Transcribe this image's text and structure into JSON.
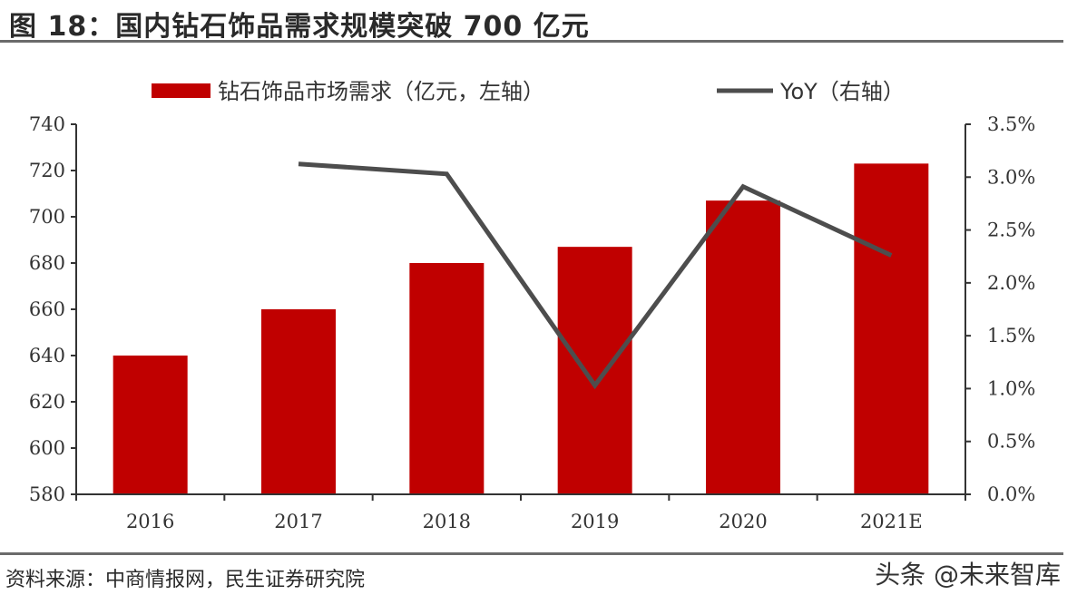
{
  "header": {
    "title": "图 18：国内钻石饰品需求规模突破 700 亿元"
  },
  "footer": {
    "source": "资料来源：中商情报网，民生证券研究院",
    "watermark": "头条 @未来智库"
  },
  "colors": {
    "bar": "#C00000",
    "line": "#4D4D4D",
    "axis": "#333333",
    "rule": "#6B6B6B"
  },
  "chart_data": {
    "type": "bar",
    "categories": [
      "2016",
      "2017",
      "2018",
      "2019",
      "2020",
      "2021E"
    ],
    "series": [
      {
        "name": "钻石饰品市场需求（亿元，左轴）",
        "kind": "bar",
        "axis": "left",
        "values": [
          640,
          660,
          680,
          687,
          707,
          723
        ]
      },
      {
        "name": "YoY（右轴）",
        "kind": "line",
        "axis": "right",
        "values": [
          null,
          3.125,
          3.03,
          1.03,
          2.91,
          2.26
        ]
      }
    ],
    "y_left": {
      "lim": [
        580,
        740
      ],
      "ticks": [
        "580",
        "600",
        "620",
        "640",
        "660",
        "680",
        "700",
        "720",
        "740"
      ],
      "tick_values": [
        580,
        600,
        620,
        640,
        660,
        680,
        700,
        720,
        740
      ]
    },
    "y_right": {
      "lim": [
        0,
        3.5
      ],
      "ticks": [
        "0.0%",
        "0.5%",
        "1.0%",
        "1.5%",
        "2.0%",
        "2.5%",
        "3.0%",
        "3.5%"
      ],
      "tick_values": [
        0,
        0.5,
        1,
        1.5,
        2,
        2.5,
        3,
        3.5
      ]
    },
    "legend": {
      "bar_label": "钻石饰品市场需求（亿元，左轴）",
      "line_label": "YoY（右轴）",
      "placement": "top"
    },
    "grid": false
  }
}
